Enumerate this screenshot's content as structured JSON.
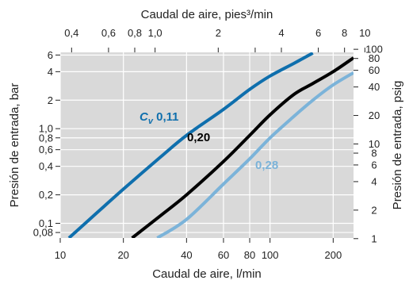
{
  "chart_data": {
    "type": "line",
    "scale": {
      "x_bottom": "log",
      "y_left": "log",
      "x_top": "log",
      "y_right": "log"
    },
    "grid": true,
    "plot_background": "#d9d9d9",
    "x_bottom": {
      "label": "Caudal de aire, l/min",
      "range": [
        10,
        250
      ],
      "ticks": [
        10,
        20,
        40,
        60,
        80,
        100,
        200
      ],
      "tick_labels": [
        "10",
        "20",
        "40",
        "60",
        "80",
        "100",
        "200"
      ]
    },
    "x_top": {
      "label": "Caudal de aire, pies³/min",
      "ticks": [
        0.4,
        0.6,
        0.8,
        1.0,
        2,
        4,
        6,
        8,
        10
      ],
      "tick_labels": [
        "0,4",
        "0,6",
        "0,8",
        "1,0",
        "2",
        "4",
        "6",
        "8",
        "10"
      ],
      "minor_ticks": [
        3
      ]
    },
    "y_left": {
      "label": "Presión de entrada, bar",
      "range": [
        0.07,
        6.4
      ],
      "ticks": [
        0.08,
        0.1,
        0.2,
        0.4,
        0.6,
        0.8,
        1.0,
        2,
        4,
        6
      ],
      "tick_labels": [
        "0,08",
        "0,1",
        "0,2",
        "0,4",
        "0,6",
        "0,8",
        "1,0",
        "2",
        "4",
        "6"
      ]
    },
    "y_right": {
      "label": "Presión de entrada, psig",
      "ticks": [
        1,
        2,
        4,
        6,
        8,
        10,
        20,
        40,
        60,
        80,
        100
      ],
      "tick_labels": [
        "1",
        "2",
        "4",
        "6",
        "8",
        "10",
        "20",
        "40",
        "60",
        "80",
        "100"
      ]
    },
    "series": [
      {
        "name": "Cv 0,11",
        "label_main": "C",
        "label_sub": "v",
        "label_value": " 0,11",
        "color": "#0f6fad",
        "x": [
          11,
          15,
          20,
          30,
          40,
          60,
          80,
          100,
          130,
          160
        ],
        "y": [
          0.07,
          0.13,
          0.23,
          0.5,
          0.85,
          1.6,
          2.6,
          3.6,
          4.9,
          6.3
        ]
      },
      {
        "name": "0,20",
        "label_main": "",
        "label_sub": "",
        "label_value": "0,20",
        "color": "#000000",
        "x": [
          22,
          30,
          40,
          60,
          80,
          100,
          130,
          160,
          200,
          250
        ],
        "y": [
          0.07,
          0.12,
          0.2,
          0.45,
          0.85,
          1.4,
          2.3,
          3.0,
          4.0,
          5.6
        ]
      },
      {
        "name": "0,28",
        "label_main": "",
        "label_sub": "",
        "label_value": "0,28",
        "color": "#7bb3d9",
        "x": [
          29,
          40,
          60,
          80,
          100,
          130,
          160,
          200,
          250
        ],
        "y": [
          0.07,
          0.11,
          0.26,
          0.48,
          0.8,
          1.35,
          2.0,
          2.9,
          3.9
        ]
      }
    ]
  }
}
